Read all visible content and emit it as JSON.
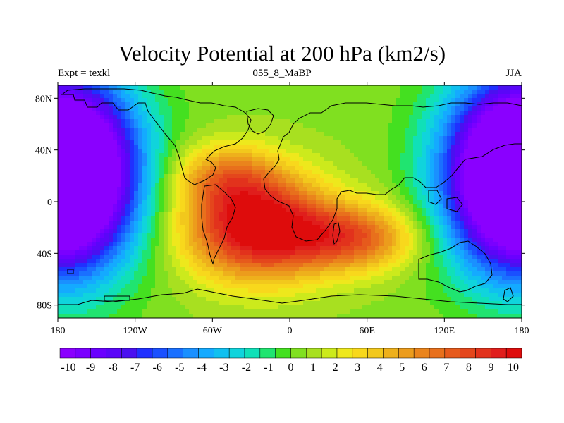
{
  "chart_data": {
    "type": "heatmap",
    "title": "Velocity Potential at 200 hPa (km2/s)",
    "subtitle_left": "Expt = texkl",
    "subtitle_center": "055_8_MaBP",
    "subtitle_right": "JJA",
    "x_ticks": [
      "180",
      "120W",
      "60W",
      "0",
      "60E",
      "120E",
      "180"
    ],
    "x_tick_values": [
      -180,
      -120,
      -60,
      0,
      60,
      120,
      180
    ],
    "y_ticks": [
      "80N",
      "40N",
      "0",
      "40S",
      "80S"
    ],
    "y_tick_values": [
      80,
      40,
      0,
      -40,
      -80
    ],
    "xlim": [
      -180,
      180
    ],
    "ylim": [
      -90,
      90
    ],
    "colorbar": {
      "levels": [
        -10,
        -9,
        -8,
        -7,
        -6,
        -5,
        -4,
        -3,
        -2,
        -1,
        0,
        1,
        2,
        3,
        4,
        5,
        6,
        7,
        8,
        9,
        10
      ],
      "labels": [
        "-10",
        "-9",
        "-8",
        "-7",
        "-6",
        "-5",
        "-4",
        "-3",
        "-2",
        "-1",
        "0",
        "1",
        "2",
        "3",
        "4",
        "5",
        "6",
        "7",
        "8",
        "9",
        "10"
      ],
      "colors": [
        "#8a00ff",
        "#7a00ff",
        "#6a00ff",
        "#5a06f8",
        "#4a10f0",
        "#2030ff",
        "#1a50ff",
        "#1a70ff",
        "#1a90ff",
        "#14aaff",
        "#10c0f0",
        "#10d4dc",
        "#10e0b8",
        "#20e470",
        "#44e020",
        "#80e020",
        "#a8e020",
        "#ccea1c",
        "#eee81c",
        "#f8d81c",
        "#f2c81c",
        "#eeb01c",
        "#ec9c1c",
        "#ea841c",
        "#e8701c",
        "#e65a1c",
        "#e4461c",
        "#e2321c",
        "#e01e1c",
        "#de0c0c"
      ]
    },
    "field_centers": [
      {
        "lon": -177,
        "lat": 22,
        "value": -10,
        "sigma_lon": 40,
        "sigma_lat": 50
      },
      {
        "lon": 180,
        "lat": 20,
        "value": -10,
        "sigma_lon": 40,
        "sigma_lat": 50
      },
      {
        "lon": -25,
        "lat": -20,
        "value": 10,
        "sigma_lon": 40,
        "sigma_lat": 28
      },
      {
        "lon": 50,
        "lat": -28,
        "value": 6,
        "sigma_lon": 35,
        "sigma_lat": 18
      },
      {
        "lon": -50,
        "lat": 20,
        "value": 4,
        "sigma_lon": 30,
        "sigma_lat": 18
      }
    ]
  }
}
